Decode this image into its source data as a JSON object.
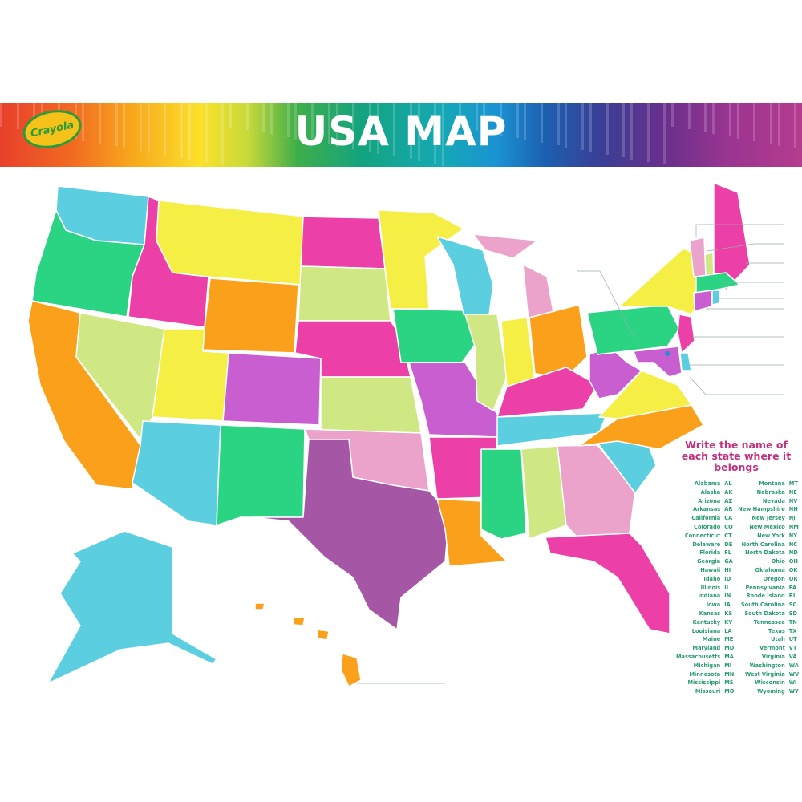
{
  "header": {
    "brand": "Crayola",
    "title": "USA MAP"
  },
  "legend": {
    "title": "Write the name of each state where it belongs",
    "left": [
      [
        "Alabama",
        "AL"
      ],
      [
        "Alaska",
        "AK"
      ],
      [
        "Arizona",
        "AZ"
      ],
      [
        "Arkansas",
        "AR"
      ],
      [
        "California",
        "CA"
      ],
      [
        "Colorado",
        "CO"
      ],
      [
        "Connecticut",
        "CT"
      ],
      [
        "Delaware",
        "DE"
      ],
      [
        "Florida",
        "FL"
      ],
      [
        "Georgia",
        "GA"
      ],
      [
        "Hawaii",
        "HI"
      ],
      [
        "Idaho",
        "ID"
      ],
      [
        "Illinois",
        "IL"
      ],
      [
        "Indiana",
        "IN"
      ],
      [
        "Iowa",
        "IA"
      ],
      [
        "Kansas",
        "KS"
      ],
      [
        "Kentucky",
        "KY"
      ],
      [
        "Louisiana",
        "LA"
      ],
      [
        "Maine",
        "ME"
      ],
      [
        "Maryland",
        "MD"
      ],
      [
        "Massachusetts",
        "MA"
      ],
      [
        "Michigan",
        "MI"
      ],
      [
        "Minnesota",
        "MN"
      ],
      [
        "Mississippi",
        "MS"
      ],
      [
        "Missouri",
        "MO"
      ]
    ],
    "right": [
      [
        "Montana",
        "MT"
      ],
      [
        "Nebraska",
        "NE"
      ],
      [
        "Nevada",
        "NV"
      ],
      [
        "New Hampshire",
        "NH"
      ],
      [
        "New Jersey",
        "NJ"
      ],
      [
        "New Mexico",
        "NM"
      ],
      [
        "New York",
        "NY"
      ],
      [
        "North Carolina",
        "NC"
      ],
      [
        "North Dakota",
        "ND"
      ],
      [
        "Ohio",
        "OH"
      ],
      [
        "Oklahoma",
        "OK"
      ],
      [
        "Oregon",
        "OR"
      ],
      [
        "Pennsylvania",
        "PA"
      ],
      [
        "Rhode Island",
        "RI"
      ],
      [
        "South Carolina",
        "SC"
      ],
      [
        "South Dakota",
        "SD"
      ],
      [
        "Tennessee",
        "TN"
      ],
      [
        "Texas",
        "TX"
      ],
      [
        "Utah",
        "UT"
      ],
      [
        "Vermont",
        "VT"
      ],
      [
        "Virginia",
        "VA"
      ],
      [
        "Washington",
        "WA"
      ],
      [
        "West Virginia",
        "WV"
      ],
      [
        "Wisconsin",
        "WI"
      ],
      [
        "Wyoming",
        "WY"
      ]
    ]
  },
  "palette": {
    "cyan": "#5bcfdf",
    "green": "#2ad483",
    "orange": "#fba01a",
    "lime": "#d0e884",
    "magenta": "#ec3fa8",
    "yellow": "#f4ee45",
    "purple": "#c85ed0",
    "pink": "#eba3cc",
    "violet": "#a557a6"
  },
  "state_colors": {
    "WA": "cyan",
    "OR": "green",
    "CA": "orange",
    "NV": "lime",
    "ID": "magenta",
    "MT": "yellow",
    "WY": "orange",
    "UT": "yellow",
    "AZ": "cyan",
    "CO": "purple",
    "NM": "green",
    "ND": "magenta",
    "SD": "lime",
    "NE": "magenta",
    "KS": "lime",
    "OK": "pink",
    "TX": "violet",
    "MN": "yellow",
    "IA": "green",
    "MO": "purple",
    "AR": "magenta",
    "LA": "orange",
    "WI": "cyan",
    "MI": "pink",
    "IL": "lime",
    "IN": "yellow",
    "OH": "orange",
    "KY": "magenta",
    "TN": "cyan",
    "MS": "green",
    "AL": "lime",
    "GA": "pink",
    "FL": "magenta",
    "SC": "cyan",
    "NC": "orange",
    "VA": "yellow",
    "WV": "purple",
    "PA": "green",
    "NY": "yellow",
    "ME": "magenta",
    "VT": "lime",
    "NH": "pink",
    "MA": "green",
    "CT": "purple",
    "RI": "cyan",
    "NJ": "magenta",
    "DE": "cyan",
    "MD": "purple",
    "AK": "cyan",
    "HI": "orange"
  }
}
